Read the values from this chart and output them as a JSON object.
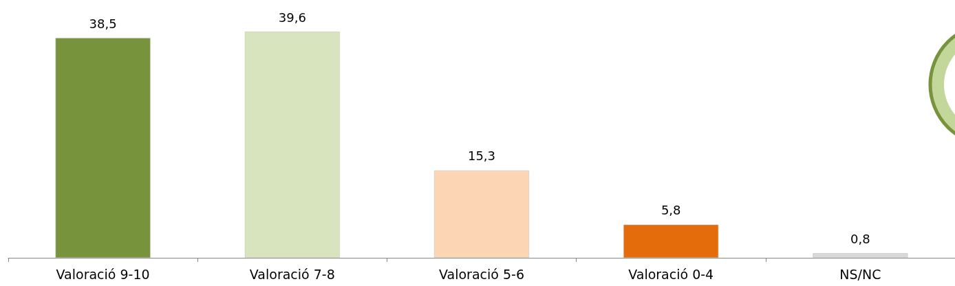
{
  "chart_data": {
    "type": "bar",
    "categories": [
      "Valoració 9-10",
      "Valoració 7-8",
      "Valoració 5-6",
      "Valoració 0-4",
      "NS/NC"
    ],
    "values": [
      38.5,
      39.6,
      15.3,
      5.8,
      0.8
    ],
    "colors": [
      "#77933c",
      "#d7e4bd",
      "#fcd5b5",
      "#e46c0a",
      "#d9d9d9"
    ],
    "value_labels": [
      "38,5",
      "39,6",
      "15,3",
      "5,8",
      "0,8"
    ]
  }
}
